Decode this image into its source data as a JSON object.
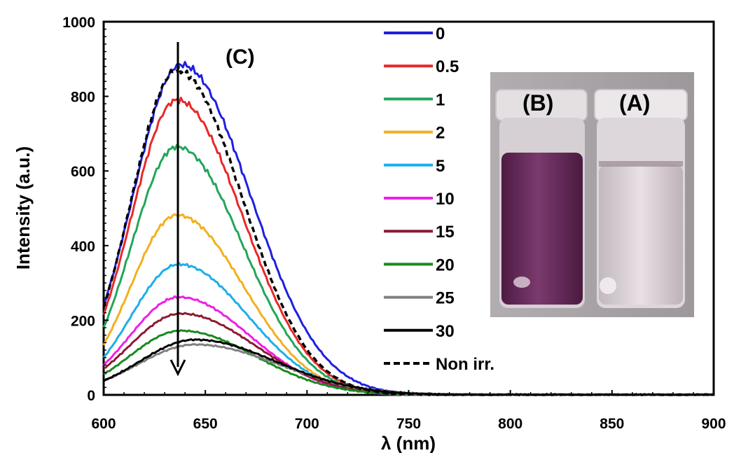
{
  "chart_data": {
    "type": "line",
    "xlabel": "λ (nm)",
    "ylabel": "Intensity (a.u.)",
    "xlim": [
      600,
      900
    ],
    "ylim": [
      0,
      1000
    ],
    "x_ticks": [
      600,
      650,
      700,
      750,
      800,
      850,
      900
    ],
    "y_ticks": [
      0,
      200,
      400,
      600,
      800,
      1000
    ],
    "grid": false,
    "legend_position": "top-right",
    "annotations": {
      "panel_label": "(C)",
      "arrow": "downward arrow at ~636 nm indicating decreasing intensity"
    },
    "series": [
      {
        "name": "0",
        "color": "#1f1fe0",
        "peak_x": 638,
        "peak_y": 885,
        "start_y": 240,
        "style": "solid"
      },
      {
        "name": "0.5",
        "color": "#e8282a",
        "peak_x": 636,
        "peak_y": 790,
        "start_y": 215,
        "style": "solid"
      },
      {
        "name": "1",
        "color": "#22a65a",
        "peak_x": 636,
        "peak_y": 665,
        "start_y": 180,
        "style": "solid"
      },
      {
        "name": "2",
        "color": "#f2b01e",
        "peak_x": 636,
        "peak_y": 482,
        "start_y": 135,
        "style": "solid"
      },
      {
        "name": "5",
        "color": "#1eaee8",
        "peak_x": 637,
        "peak_y": 350,
        "start_y": 100,
        "style": "solid"
      },
      {
        "name": "10",
        "color": "#f01ee8",
        "peak_x": 637,
        "peak_y": 262,
        "start_y": 80,
        "style": "solid"
      },
      {
        "name": "15",
        "color": "#8c1a32",
        "peak_x": 638,
        "peak_y": 218,
        "start_y": 70,
        "style": "solid"
      },
      {
        "name": "20",
        "color": "#188a1e",
        "peak_x": 638,
        "peak_y": 172,
        "start_y": 55,
        "style": "solid"
      },
      {
        "name": "25",
        "color": "#808080",
        "peak_x": 645,
        "peak_y": 135,
        "start_y": 38,
        "style": "solid"
      },
      {
        "name": "30",
        "color": "#000000",
        "peak_x": 645,
        "peak_y": 148,
        "start_y": 38,
        "style": "solid"
      },
      {
        "name": "Non irr.",
        "color": "#000000",
        "peak_x": 636,
        "peak_y": 870,
        "start_y": 235,
        "style": "dashed"
      }
    ]
  },
  "inset_photo": {
    "labels": [
      "(B)",
      "(A)"
    ],
    "colors": {
      "background": "#a7a3a7",
      "vial_b_liquid": "#6a2a5c",
      "vial_a_liquid": "#d8ccd2"
    }
  }
}
